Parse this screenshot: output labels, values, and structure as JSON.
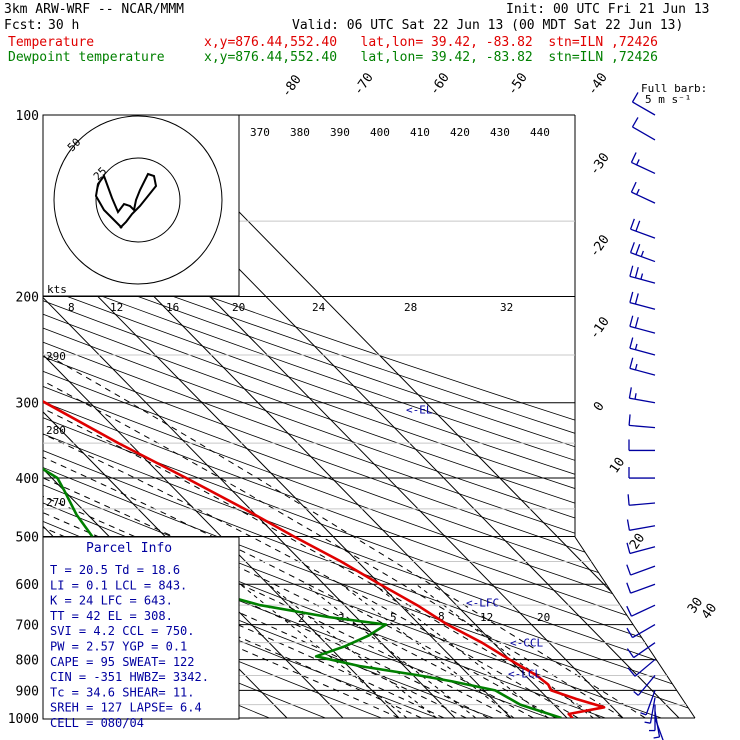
{
  "header": {
    "model": "3km ARW-WRF -- NCAR/MMM",
    "init": "Init: 00 UTC Fri 21 Jun 13",
    "fcst_label": "Fcst:",
    "fcst_value": "30 h",
    "valid": "Valid: 06 UTC Sat 22 Jun 13 (00 MDT Sat 22 Jun 13)",
    "temp_label": "Temperature",
    "temp_loc": "x,y=876.44,552.40   lat,lon= 39.42, -83.82  stn=ILN ,72426",
    "dew_label": "Dewpoint temperature",
    "dew_loc": "x,y=876.44,552.40   lat,lon= 39.42, -83.82  stn=ILN ,72426"
  },
  "colors": {
    "temperature": "#e00000",
    "dewpoint": "#008000",
    "info": "#0000a0",
    "barb": "#0000a0"
  },
  "wind_key": {
    "line1": "Full barb:",
    "line2": "5 m s⁻¹"
  },
  "hodograph": {
    "unit": "kts",
    "ring_labels": [
      "25",
      "50"
    ]
  },
  "chart_data": {
    "type": "skew-t",
    "pressure_levels": [
      100,
      200,
      300,
      400,
      500,
      600,
      700,
      800,
      900,
      1000
    ],
    "pressure_labels": [
      "100",
      "200",
      "300",
      "400",
      "500",
      "600",
      "700",
      "800",
      "900",
      "1000"
    ],
    "isotherm_labels": [
      "-80",
      "-70",
      "-60",
      "-50",
      "-40",
      "-30",
      "-20",
      "-10",
      "0",
      "10",
      "20",
      "30",
      "40"
    ],
    "theta_labels": [
      "370",
      "380",
      "390",
      "400",
      "410",
      "420",
      "430",
      "440"
    ],
    "theta_left_labels": [
      "290",
      "280",
      "270"
    ],
    "theta_e_labels": [
      "8",
      "12",
      "16",
      "20",
      "24",
      "28",
      "32"
    ],
    "mixing_ratio_labels": [
      "2",
      "3",
      "5",
      "8",
      "12",
      "20"
    ],
    "temperature": [
      [
        1000,
        21
      ],
      [
        985,
        21
      ],
      [
        960,
        28.5
      ],
      [
        930,
        25
      ],
      [
        900,
        22
      ],
      [
        880,
        22.5
      ],
      [
        850,
        22
      ],
      [
        800,
        20
      ],
      [
        750,
        18
      ],
      [
        700,
        15
      ],
      [
        650,
        13
      ],
      [
        600,
        10
      ],
      [
        550,
        7
      ],
      [
        500,
        3
      ],
      [
        450,
        -1
      ],
      [
        400,
        -6
      ],
      [
        350,
        -12
      ],
      [
        300,
        -18
      ],
      [
        270,
        -22
      ],
      [
        250,
        -27
      ],
      [
        220,
        -33
      ],
      [
        200,
        -38
      ],
      [
        185,
        -43
      ],
      [
        170,
        -50
      ],
      [
        160,
        -50
      ],
      [
        150,
        -50
      ],
      [
        140,
        -52
      ],
      [
        120,
        -51
      ],
      [
        110,
        -48
      ],
      [
        100,
        -44
      ]
    ],
    "dewpoint": [
      [
        1000,
        19
      ],
      [
        950,
        14
      ],
      [
        900,
        12
      ],
      [
        870,
        6
      ],
      [
        850,
        1
      ],
      [
        820,
        -8
      ],
      [
        790,
        -14
      ],
      [
        760,
        -7
      ],
      [
        730,
        -1
      ],
      [
        700,
        4
      ],
      [
        680,
        -5
      ],
      [
        650,
        -15
      ],
      [
        600,
        -25
      ],
      [
        560,
        -38
      ],
      [
        530,
        -36
      ],
      [
        500,
        -33
      ],
      [
        460,
        -32
      ],
      [
        420,
        -30
      ],
      [
        400,
        -29
      ],
      [
        350,
        -33
      ],
      [
        330,
        -38
      ],
      [
        300,
        -33
      ],
      [
        270,
        -38
      ],
      [
        250,
        -47
      ],
      [
        230,
        -44
      ],
      [
        210,
        -50
      ],
      [
        200,
        -51
      ],
      [
        180,
        -60
      ],
      [
        160,
        -66
      ],
      [
        140,
        -70
      ],
      [
        130,
        -71
      ],
      [
        120,
        -72
      ],
      [
        100,
        -74
      ]
    ],
    "markers": [
      {
        "label": "<-EL",
        "p": 308
      },
      {
        "label": "<-LFC",
        "p": 643
      },
      {
        "label": "<-CCL",
        "p": 750
      },
      {
        "label": "<-LCL",
        "p": 843
      }
    ],
    "wind_barbs": [
      {
        "p": 100,
        "dir": 300,
        "spd": 10
      },
      {
        "p": 110,
        "dir": 300,
        "spd": 10
      },
      {
        "p": 125,
        "dir": 295,
        "spd": 15
      },
      {
        "p": 140,
        "dir": 295,
        "spd": 15
      },
      {
        "p": 160,
        "dir": 290,
        "spd": 20
      },
      {
        "p": 175,
        "dir": 290,
        "spd": 25
      },
      {
        "p": 190,
        "dir": 285,
        "spd": 25
      },
      {
        "p": 210,
        "dir": 285,
        "spd": 20
      },
      {
        "p": 230,
        "dir": 285,
        "spd": 20
      },
      {
        "p": 250,
        "dir": 285,
        "spd": 15
      },
      {
        "p": 270,
        "dir": 285,
        "spd": 15
      },
      {
        "p": 300,
        "dir": 280,
        "spd": 15
      },
      {
        "p": 330,
        "dir": 275,
        "spd": 10
      },
      {
        "p": 360,
        "dir": 270,
        "spd": 10
      },
      {
        "p": 400,
        "dir": 270,
        "spd": 10
      },
      {
        "p": 440,
        "dir": 265,
        "spd": 10
      },
      {
        "p": 480,
        "dir": 260,
        "spd": 10
      },
      {
        "p": 520,
        "dir": 255,
        "spd": 10
      },
      {
        "p": 560,
        "dir": 250,
        "spd": 10
      },
      {
        "p": 600,
        "dir": 250,
        "spd": 10
      },
      {
        "p": 650,
        "dir": 245,
        "spd": 10
      },
      {
        "p": 700,
        "dir": 240,
        "spd": 10
      },
      {
        "p": 750,
        "dir": 235,
        "spd": 10
      },
      {
        "p": 800,
        "dir": 230,
        "spd": 10
      },
      {
        "p": 850,
        "dir": 220,
        "spd": 5
      },
      {
        "p": 900,
        "dir": 200,
        "spd": 5
      },
      {
        "p": 925,
        "dir": 190,
        "spd": 5
      },
      {
        "p": 950,
        "dir": 180,
        "spd": 5
      },
      {
        "p": 975,
        "dir": 170,
        "spd": 5
      },
      {
        "p": 1000,
        "dir": 160,
        "spd": 5
      }
    ]
  },
  "parcel_info": {
    "title": "Parcel Info",
    "rows": [
      "T  =    20.5  Td =  18.6",
      "LI =     0.1  LCL =  843.",
      "K  =      24  LFC =  643.",
      "TT =      42  EL  =  308.",
      "SVI =    4.2  CCL =  750.",
      "PW =    2.57  YGP =   0.1",
      "CAPE =    95  SWEAT=  122",
      "CIN =   -351  HWBZ= 3342.",
      "Tc  =   34.6  SHEAR=  11.",
      "SREH =   127  LAPSE=  6.4",
      "CELL = 080/04"
    ]
  }
}
